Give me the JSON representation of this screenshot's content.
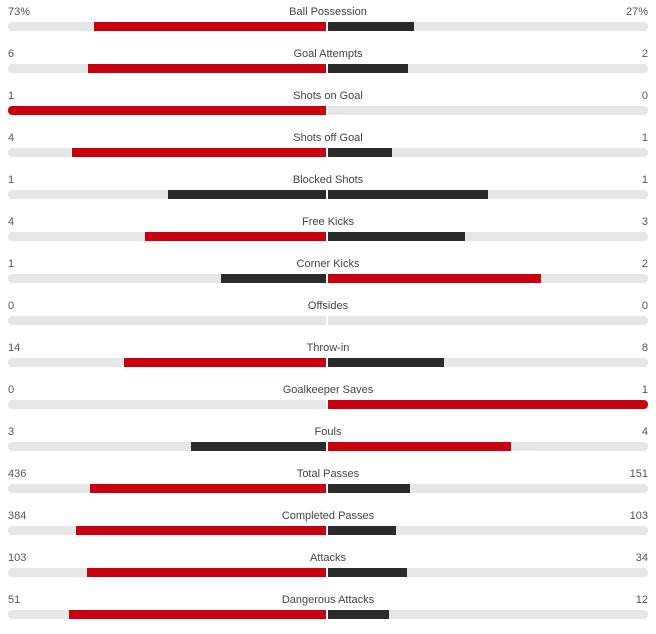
{
  "colors": {
    "leader": "#c8000f",
    "trailer": "#2b2b2b",
    "track": "#e6e6e6"
  },
  "stats": [
    {
      "label": "Ball Possession",
      "home": "73%",
      "away": "27%",
      "home_share": 0.73,
      "away_share": 0.27,
      "leader": "home"
    },
    {
      "label": "Goal Attempts",
      "home": "6",
      "away": "2",
      "home_share": 0.75,
      "away_share": 0.25,
      "leader": "home"
    },
    {
      "label": "Shots on Goal",
      "home": "1",
      "away": "0",
      "home_share": 1.0,
      "away_share": 0.0,
      "leader": "home"
    },
    {
      "label": "Shots off Goal",
      "home": "4",
      "away": "1",
      "home_share": 0.8,
      "away_share": 0.2,
      "leader": "home"
    },
    {
      "label": "Blocked Shots",
      "home": "1",
      "away": "1",
      "home_share": 0.5,
      "away_share": 0.5,
      "leader": "none"
    },
    {
      "label": "Free Kicks",
      "home": "4",
      "away": "3",
      "home_share": 0.571,
      "away_share": 0.429,
      "leader": "home"
    },
    {
      "label": "Corner Kicks",
      "home": "1",
      "away": "2",
      "home_share": 0.333,
      "away_share": 0.667,
      "leader": "away"
    },
    {
      "label": "Offsides",
      "home": "0",
      "away": "0",
      "home_share": 0.0,
      "away_share": 0.0,
      "leader": "none"
    },
    {
      "label": "Throw-in",
      "home": "14",
      "away": "8",
      "home_share": 0.636,
      "away_share": 0.364,
      "leader": "home"
    },
    {
      "label": "Goalkeeper Saves",
      "home": "0",
      "away": "1",
      "home_share": 0.0,
      "away_share": 1.0,
      "leader": "away"
    },
    {
      "label": "Fouls",
      "home": "3",
      "away": "4",
      "home_share": 0.429,
      "away_share": 0.571,
      "leader": "away"
    },
    {
      "label": "Total Passes",
      "home": "436",
      "away": "151",
      "home_share": 0.743,
      "away_share": 0.257,
      "leader": "home"
    },
    {
      "label": "Completed Passes",
      "home": "384",
      "away": "103",
      "home_share": 0.788,
      "away_share": 0.212,
      "leader": "home"
    },
    {
      "label": "Attacks",
      "home": "103",
      "away": "34",
      "home_share": 0.752,
      "away_share": 0.248,
      "leader": "home"
    },
    {
      "label": "Dangerous Attacks",
      "home": "51",
      "away": "12",
      "home_share": 0.81,
      "away_share": 0.19,
      "leader": "home"
    }
  ]
}
